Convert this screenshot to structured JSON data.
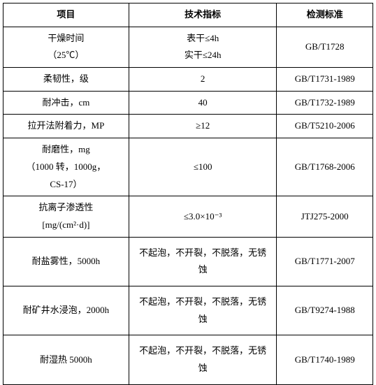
{
  "table": {
    "columns": [
      "项目",
      "技术指标",
      "检测标准"
    ],
    "rows": [
      {
        "item_lines": [
          "干燥时间",
          "（25℃）"
        ],
        "spec_lines": [
          "表干≤4h",
          "实干≤24h"
        ],
        "standard": "GB/T1728",
        "tall": false
      },
      {
        "item_lines": [
          "柔韧性，级"
        ],
        "spec_lines": [
          "2"
        ],
        "standard": "GB/T1731-1989",
        "tall": false
      },
      {
        "item_lines": [
          "耐冲击，cm"
        ],
        "spec_lines": [
          "40"
        ],
        "standard": "GB/T1732-1989",
        "tall": false
      },
      {
        "item_lines": [
          "拉开法附着力，MP"
        ],
        "spec_lines": [
          "≥12"
        ],
        "standard": "GB/T5210-2006",
        "tall": false
      },
      {
        "item_lines": [
          "耐磨性，mg",
          "（1000 转，1000g，",
          "CS-17）"
        ],
        "spec_lines": [
          "≤100"
        ],
        "standard": "GB/T1768-2006",
        "tall": false
      },
      {
        "item_lines": [
          "抗离子渗透性",
          "[mg/(cm²·d)]"
        ],
        "spec_lines": [
          "≤3.0×10⁻³"
        ],
        "standard": "JTJ275-2000",
        "tall": false
      },
      {
        "item_lines": [
          "耐盐雾性，5000h"
        ],
        "spec_lines": [
          "不起泡，不开裂，不脱落，无锈",
          "蚀"
        ],
        "standard": "GB/T1771-2007",
        "tall": true
      },
      {
        "item_lines": [
          "耐矿井水浸泡，2000h"
        ],
        "spec_lines": [
          "不起泡，不开裂，不脱落，无锈",
          "蚀"
        ],
        "standard": "GB/T9274-1988",
        "tall": true
      },
      {
        "item_lines": [
          "耐湿热 5000h"
        ],
        "spec_lines": [
          "不起泡，不开裂，不脱落，无锈",
          "蚀"
        ],
        "standard": "GB/T1740-1989",
        "tall": true
      }
    ]
  }
}
